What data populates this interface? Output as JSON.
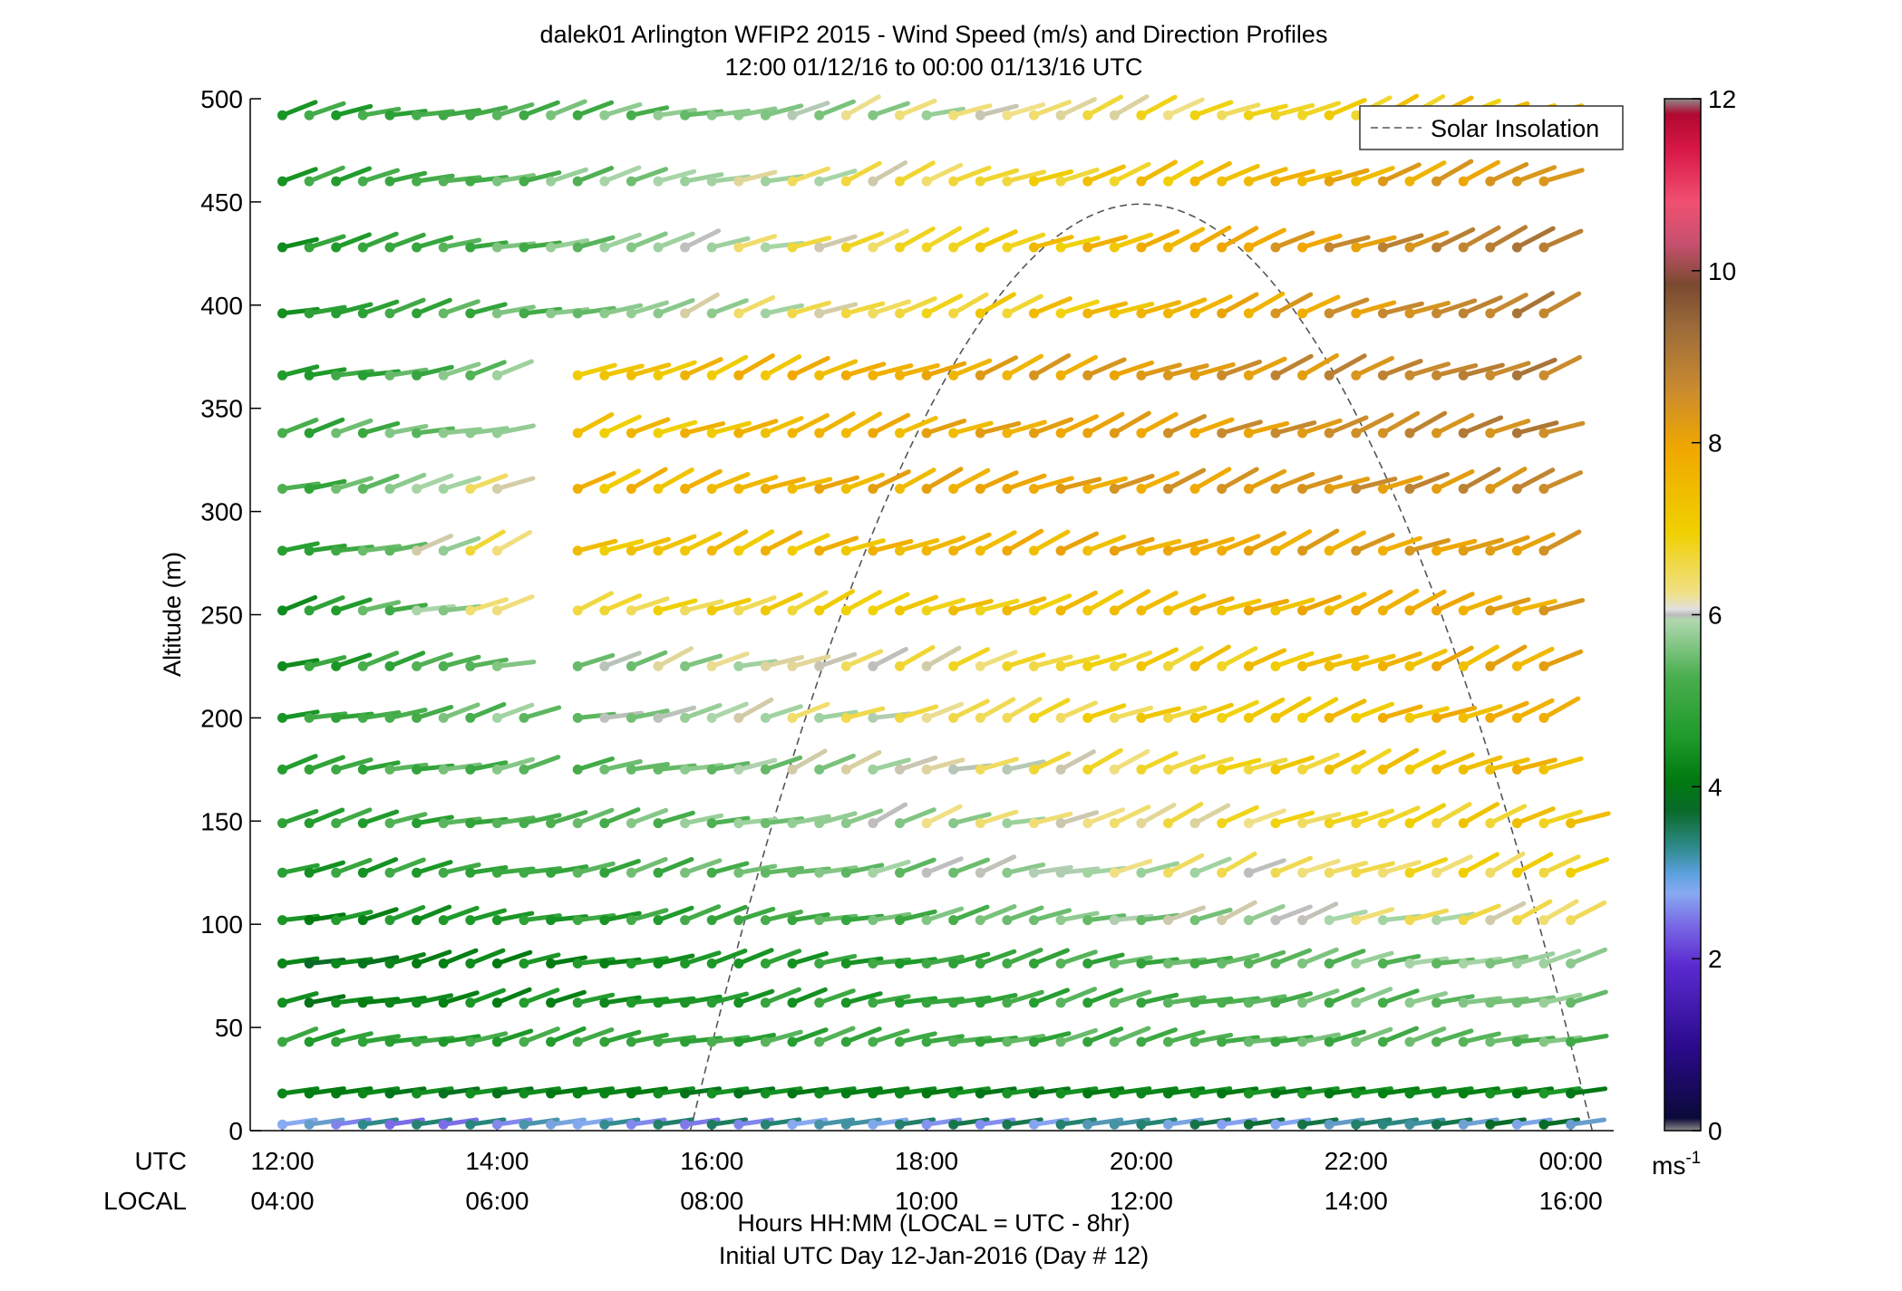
{
  "chart_data": {
    "type": "wind-barb-profile",
    "title": "dalek01 Arlington WFIP2 2015 - Wind Speed (m/s) and Direction Profiles",
    "subtitle": "12:00 01/12/16 to 00:00 01/13/16  UTC",
    "ylabel": "Altitude (m)",
    "xlabel": "Hours HH:MM  (LOCAL = UTC - 8hr)",
    "xlabel2": "Initial UTC Day 12-Jan-2016 (Day # 12)",
    "row_label_utc": "UTC",
    "row_label_local": "LOCAL",
    "ylim": [
      0,
      500
    ],
    "yticks": [
      0,
      50,
      100,
      150,
      200,
      250,
      300,
      350,
      400,
      450,
      500
    ],
    "xlim": [
      11.7,
      24.4
    ],
    "xticks": [
      12,
      14,
      16,
      18,
      20,
      22,
      24
    ],
    "utc_tick_labels": [
      "12:00",
      "14:00",
      "16:00",
      "18:00",
      "20:00",
      "22:00",
      "00:00"
    ],
    "local_tick_labels": [
      "04:00",
      "06:00",
      "08:00",
      "10:00",
      "12:00",
      "14:00",
      "16:00"
    ],
    "colorbar": {
      "range": [
        0,
        12
      ],
      "ticks": [
        0,
        2,
        4,
        6,
        8,
        10,
        12
      ],
      "unit": "ms",
      "unit_exp": "-1"
    },
    "legend": {
      "entries": [
        "Solar Insolation"
      ],
      "position": "top-right"
    },
    "solar_insolation": {
      "start_hour": 15.8,
      "peak_hour": 20.0,
      "end_hour": 24.2,
      "peak_altitude": 449
    },
    "time_step_hours": 0.25,
    "altitudes": [
      3,
      18,
      43,
      62,
      81,
      102,
      125,
      149,
      175,
      200,
      225,
      252,
      281,
      311,
      338,
      366,
      396,
      428,
      460,
      492
    ],
    "rows": [
      {
        "alt": 3,
        "start": 12.0,
        "end": 24.0,
        "s0": 2.6,
        "s1": 3.0
      },
      {
        "alt": 18,
        "start": 12.0,
        "end": 24.0,
        "s0": 3.8,
        "s1": 4.0
      },
      {
        "alt": 43,
        "start": 12.0,
        "end": 24.0,
        "s0": 4.6,
        "s1": 5.3
      },
      {
        "alt": 62,
        "start": 12.0,
        "end": 24.0,
        "s0": 3.8,
        "s1": 5.6
      },
      {
        "alt": 81,
        "start": 12.0,
        "end": 24.0,
        "s0": 3.6,
        "s1": 5.8
      },
      {
        "alt": 102,
        "start": 12.0,
        "end": 24.0,
        "s0": 4.0,
        "s1": 6.5
      },
      {
        "alt": 125,
        "start": 12.0,
        "end": 24.0,
        "s0": 4.4,
        "s1": 6.9
      },
      {
        "alt": 149,
        "start": 12.0,
        "end": 24.0,
        "s0": 4.6,
        "s1": 7.2
      },
      {
        "alt": 175,
        "start": 12.0,
        "end": 14.25,
        "s0": 4.6,
        "s1": 5.4
      },
      {
        "alt": 175,
        "start": 14.75,
        "end": 23.75,
        "s0": 5.2,
        "s1": 7.6
      },
      {
        "alt": 200,
        "start": 12.0,
        "end": 14.25,
        "s0": 4.6,
        "s1": 5.6
      },
      {
        "alt": 200,
        "start": 14.75,
        "end": 23.75,
        "s0": 5.6,
        "s1": 7.8
      },
      {
        "alt": 225,
        "start": 12.0,
        "end": 14.0,
        "s0": 4.4,
        "s1": 5.4
      },
      {
        "alt": 225,
        "start": 14.75,
        "end": 23.75,
        "s0": 5.6,
        "s1": 7.9
      },
      {
        "alt": 252,
        "start": 12.0,
        "end": 14.0,
        "s0": 4.2,
        "s1": 6.4
      },
      {
        "alt": 252,
        "start": 14.75,
        "end": 23.75,
        "s0": 6.6,
        "s1": 8.0
      },
      {
        "alt": 281,
        "start": 12.0,
        "end": 14.0,
        "s0": 4.4,
        "s1": 6.6
      },
      {
        "alt": 281,
        "start": 14.75,
        "end": 23.75,
        "s0": 7.2,
        "s1": 8.2
      },
      {
        "alt": 311,
        "start": 12.0,
        "end": 14.0,
        "s0": 4.8,
        "s1": 6.4
      },
      {
        "alt": 311,
        "start": 14.75,
        "end": 23.75,
        "s0": 7.4,
        "s1": 8.6
      },
      {
        "alt": 338,
        "start": 12.0,
        "end": 14.0,
        "s0": 4.8,
        "s1": 5.8
      },
      {
        "alt": 338,
        "start": 14.75,
        "end": 23.75,
        "s0": 7.2,
        "s1": 8.8
      },
      {
        "alt": 366,
        "start": 12.0,
        "end": 14.0,
        "s0": 4.4,
        "s1": 5.6
      },
      {
        "alt": 366,
        "start": 14.75,
        "end": 23.75,
        "s0": 7.2,
        "s1": 8.9
      },
      {
        "alt": 396,
        "start": 12.0,
        "end": 23.75,
        "s0": 4.4,
        "s1": 9.0
      },
      {
        "alt": 428,
        "start": 12.0,
        "end": 23.75,
        "s0": 4.4,
        "s1": 9.1
      },
      {
        "alt": 460,
        "start": 12.0,
        "end": 23.75,
        "s0": 4.6,
        "s1": 8.4
      },
      {
        "alt": 492,
        "start": 12.0,
        "end": 23.75,
        "s0": 4.6,
        "s1": 7.4
      }
    ]
  }
}
